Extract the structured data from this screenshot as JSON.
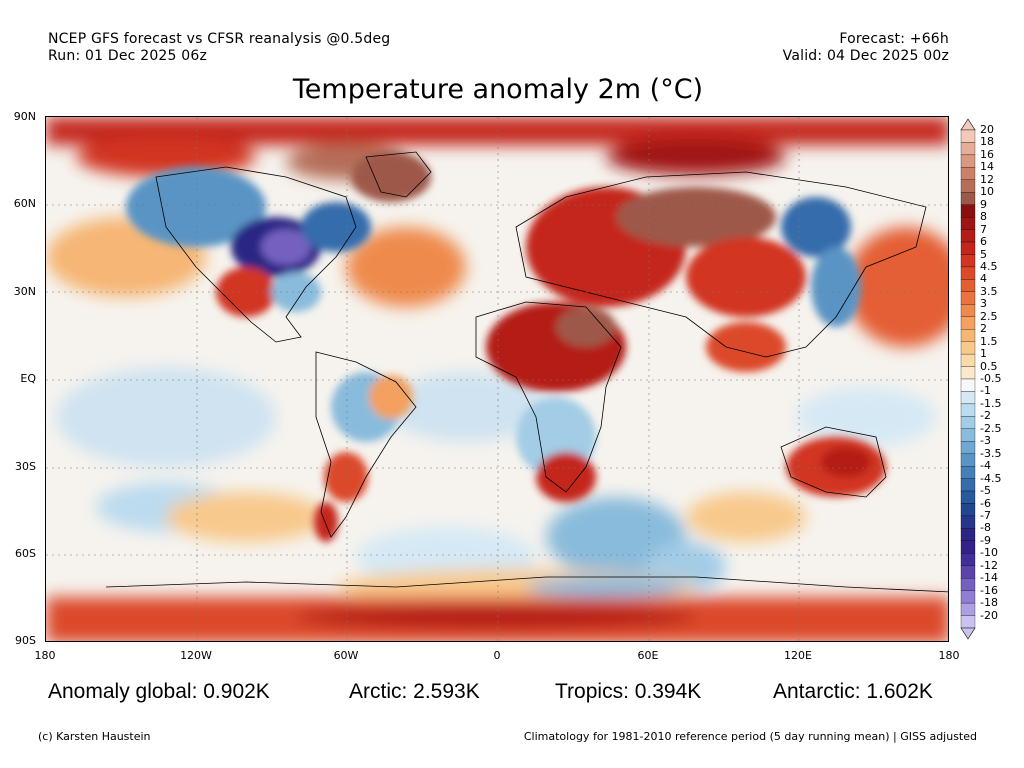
{
  "header": {
    "line1_left": "NCEP GFS forecast vs CFSR reanalysis @0.5deg",
    "line2_left": "Run: 01 Dec 2025 06z",
    "line1_right": "Forecast: +66h",
    "line2_right": "Valid: 04 Dec 2025 00z"
  },
  "title": "Temperature anomaly 2m (°C)",
  "axes": {
    "y_labels": [
      "90N",
      "60N",
      "30N",
      "EQ",
      "30S",
      "60S",
      "90S"
    ],
    "x_labels": [
      "180",
      "120W",
      "60W",
      "0",
      "60E",
      "120E",
      "180"
    ]
  },
  "colorbar": {
    "labels": [
      "20",
      "18",
      "16",
      "14",
      "12",
      "10",
      "9",
      "8",
      "7",
      "6",
      "5",
      "4.5",
      "4",
      "3.5",
      "3",
      "2.5",
      "2",
      "1.5",
      "1",
      "0.5",
      "-0.5",
      "-1",
      "-1.5",
      "-2",
      "-2.5",
      "-3",
      "-3.5",
      "-4",
      "-4.5",
      "-5",
      "-6",
      "-7",
      "-8",
      "-9",
      "-10",
      "-12",
      "-14",
      "-16",
      "-18",
      "-20"
    ],
    "colors": [
      "#f2c8b8",
      "#e6ad98",
      "#d99880",
      "#c98268",
      "#b56e58",
      "#9e5848",
      "#8b0f0f",
      "#a01414",
      "#b41c18",
      "#c4261c",
      "#d23622",
      "#dc4a2a",
      "#e45e34",
      "#ea7440",
      "#ef8a4e",
      "#f3a060",
      "#f6b674",
      "#f8c98c",
      "#fadaa8",
      "#fbe9cc",
      "#f7f7f7",
      "#d5e9f5",
      "#bcdbef",
      "#a3cce6",
      "#89bbdc",
      "#71a8d1",
      "#5a94c5",
      "#4580b9",
      "#346cac",
      "#28589e",
      "#22468f",
      "#27358a",
      "#2b2684",
      "#34208a",
      "#422e98",
      "#5a44ab",
      "#7460c0",
      "#8f7ed3",
      "#ad9fe2",
      "#cbc2ef"
    ]
  },
  "stats": {
    "global": "Anomaly global: 0.902K",
    "arctic": "Arctic: 2.593K",
    "tropics": "Tropics: 0.394K",
    "antarctic": "Antarctic: 1.602K"
  },
  "footer": {
    "left": "(c) Karsten Haustein",
    "right": "Climatology for 1981-2010 reference period (5 day running mean) | GISS adjusted"
  }
}
